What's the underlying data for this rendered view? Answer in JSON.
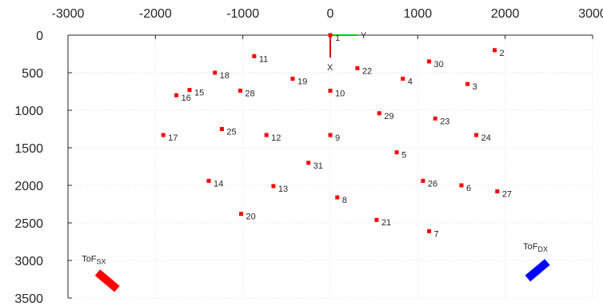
{
  "chart_data": {
    "type": "scatter",
    "title": "",
    "xlabel": "",
    "ylabel": "",
    "xlim": [
      -3000,
      3000
    ],
    "ylim": [
      3500,
      0
    ],
    "y_reversed": true,
    "x_axis_position": "top",
    "grid": true,
    "x_ticks": [
      "-3000",
      "-2000",
      "-1000",
      "0",
      "1000",
      "2000",
      "3000"
    ],
    "y_ticks": [
      "0",
      "500",
      "1000",
      "1500",
      "2000",
      "2500",
      "3000",
      "3500"
    ],
    "marker_color": "#ff0000",
    "points": [
      {
        "label": "1",
        "x": 0,
        "y": 0
      },
      {
        "label": "2",
        "x": 1880,
        "y": 200
      },
      {
        "label": "3",
        "x": 1570,
        "y": 650
      },
      {
        "label": "4",
        "x": 830,
        "y": 580
      },
      {
        "label": "5",
        "x": 760,
        "y": 1560
      },
      {
        "label": "6",
        "x": 1500,
        "y": 2000
      },
      {
        "label": "7",
        "x": 1130,
        "y": 2610
      },
      {
        "label": "8",
        "x": 80,
        "y": 2160
      },
      {
        "label": "9",
        "x": 0,
        "y": 1330
      },
      {
        "label": "10",
        "x": 0,
        "y": 740
      },
      {
        "label": "11",
        "x": -870,
        "y": 280
      },
      {
        "label": "12",
        "x": -730,
        "y": 1330
      },
      {
        "label": "13",
        "x": -650,
        "y": 2010
      },
      {
        "label": "14",
        "x": -1390,
        "y": 1940
      },
      {
        "label": "15",
        "x": -1610,
        "y": 730
      },
      {
        "label": "16",
        "x": -1760,
        "y": 800
      },
      {
        "label": "17",
        "x": -1910,
        "y": 1330
      },
      {
        "label": "18",
        "x": -1320,
        "y": 500
      },
      {
        "label": "19",
        "x": -430,
        "y": 580
      },
      {
        "label": "20",
        "x": -1020,
        "y": 2380
      },
      {
        "label": "21",
        "x": 530,
        "y": 2460
      },
      {
        "label": "22",
        "x": 310,
        "y": 440
      },
      {
        "label": "23",
        "x": 1200,
        "y": 1110
      },
      {
        "label": "24",
        "x": 1670,
        "y": 1330
      },
      {
        "label": "25",
        "x": -1240,
        "y": 1250
      },
      {
        "label": "26",
        "x": 1060,
        "y": 1940
      },
      {
        "label": "27",
        "x": 1910,
        "y": 2080
      },
      {
        "label": "28",
        "x": -1030,
        "y": 740
      },
      {
        "label": "29",
        "x": 560,
        "y": 1040
      },
      {
        "label": "30",
        "x": 1130,
        "y": 350
      },
      {
        "label": "31",
        "x": -250,
        "y": 1700
      }
    ],
    "origin_axes": {
      "x_label": "X",
      "y_label": "Y",
      "x_color": "#d40000",
      "y_color": "#00cc00"
    },
    "sensors": [
      {
        "label_main": "ToF",
        "label_sub": "SX",
        "x": -2550,
        "y": 3270,
        "angle_deg": 40,
        "color": "#ff0000"
      },
      {
        "label_main": "ToF",
        "label_sub": "DX",
        "x": 2370,
        "y": 3130,
        "angle_deg": -40,
        "color": "#0000ff"
      }
    ]
  }
}
